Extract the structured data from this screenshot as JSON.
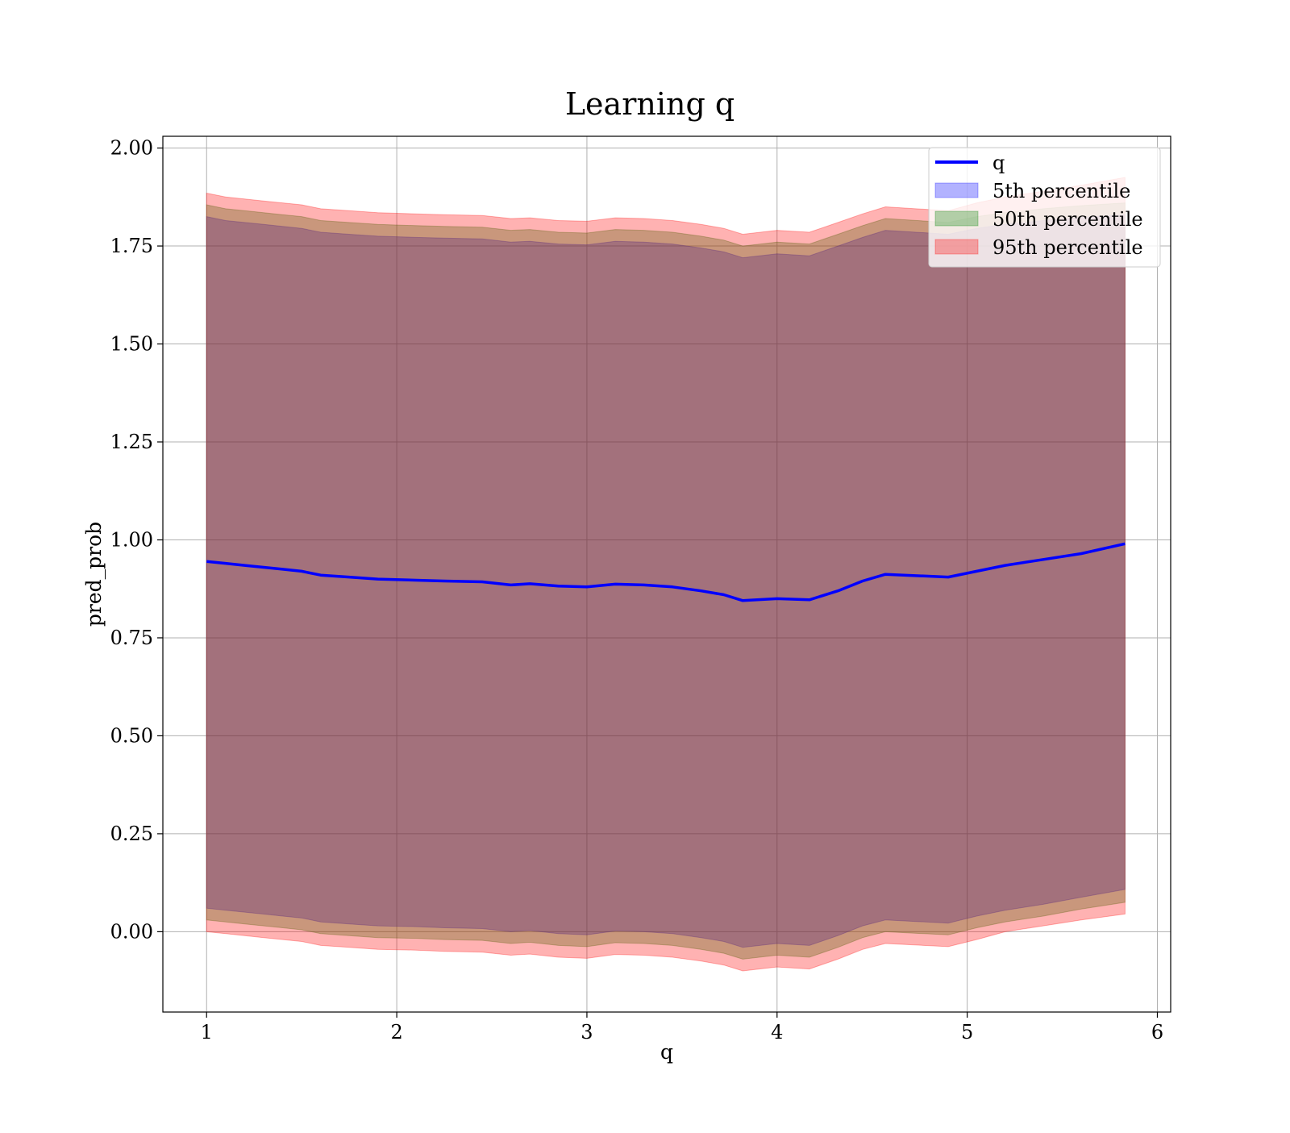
{
  "chart_data": {
    "type": "area",
    "title": "Learning q",
    "xlabel": "q",
    "ylabel": "pred_prob",
    "xlim": [
      0.77,
      6.07
    ],
    "ylim": [
      -0.205,
      2.03
    ],
    "x_ticks": [
      1,
      2,
      3,
      4,
      5,
      6
    ],
    "x_tick_labels": [
      "1",
      "2",
      "3",
      "4",
      "5",
      "6"
    ],
    "y_ticks": [
      0.0,
      0.25,
      0.5,
      0.75,
      1.0,
      1.25,
      1.5,
      1.75,
      2.0
    ],
    "y_tick_labels": [
      "0.00",
      "0.25",
      "0.50",
      "0.75",
      "1.00",
      "1.25",
      "1.50",
      "1.75",
      "2.00"
    ],
    "grid": true,
    "legend_position": "top-right",
    "x": [
      1.0,
      1.1,
      1.2,
      1.3,
      1.4,
      1.5,
      1.6,
      1.75,
      1.9,
      2.1,
      2.25,
      2.45,
      2.6,
      2.7,
      2.85,
      3.0,
      3.15,
      3.3,
      3.45,
      3.6,
      3.72,
      3.82,
      4.0,
      4.17,
      4.32,
      4.45,
      4.57,
      4.9,
      5.05,
      5.2,
      5.4,
      5.6,
      5.83
    ],
    "line": {
      "name": "q",
      "color": "#0000ff",
      "values": [
        0.945,
        0.94,
        0.935,
        0.93,
        0.925,
        0.92,
        0.91,
        0.905,
        0.9,
        0.897,
        0.895,
        0.893,
        0.885,
        0.888,
        0.882,
        0.88,
        0.887,
        0.885,
        0.88,
        0.87,
        0.86,
        0.845,
        0.85,
        0.847,
        0.87,
        0.895,
        0.912,
        0.905,
        0.92,
        0.935,
        0.95,
        0.965,
        0.99
      ]
    },
    "bands": [
      {
        "name": "5th percentile",
        "color": "#0000ff",
        "upper": [
          1.825,
          1.815,
          1.81,
          1.805,
          1.8,
          1.795,
          1.785,
          1.78,
          1.775,
          1.772,
          1.77,
          1.768,
          1.76,
          1.762,
          1.755,
          1.753,
          1.762,
          1.76,
          1.755,
          1.745,
          1.735,
          1.72,
          1.73,
          1.725,
          1.75,
          1.772,
          1.79,
          1.78,
          1.795,
          1.805,
          1.815,
          1.823,
          1.83
        ],
        "lower": [
          0.06,
          0.055,
          0.05,
          0.045,
          0.04,
          0.035,
          0.025,
          0.02,
          0.015,
          0.013,
          0.01,
          0.008,
          0.0,
          0.003,
          -0.005,
          -0.008,
          0.002,
          0.0,
          -0.005,
          -0.015,
          -0.025,
          -0.04,
          -0.03,
          -0.035,
          -0.01,
          0.015,
          0.03,
          0.022,
          0.04,
          0.055,
          0.07,
          0.088,
          0.108
        ]
      },
      {
        "name": "50th percentile",
        "color": "#008000",
        "upper": [
          1.855,
          1.845,
          1.84,
          1.835,
          1.83,
          1.825,
          1.815,
          1.81,
          1.805,
          1.802,
          1.8,
          1.798,
          1.79,
          1.792,
          1.785,
          1.783,
          1.792,
          1.79,
          1.785,
          1.775,
          1.765,
          1.75,
          1.76,
          1.755,
          1.78,
          1.802,
          1.82,
          1.81,
          1.825,
          1.835,
          1.845,
          1.853,
          1.86
        ],
        "lower": [
          0.03,
          0.025,
          0.02,
          0.015,
          0.01,
          0.005,
          -0.005,
          -0.01,
          -0.015,
          -0.017,
          -0.02,
          -0.022,
          -0.03,
          -0.027,
          -0.035,
          -0.038,
          -0.028,
          -0.03,
          -0.035,
          -0.045,
          -0.055,
          -0.07,
          -0.06,
          -0.065,
          -0.04,
          -0.015,
          0.0,
          -0.008,
          0.01,
          0.025,
          0.04,
          0.058,
          0.075
        ]
      },
      {
        "name": "95th percentile",
        "color": "#ff0000",
        "upper": [
          1.885,
          1.875,
          1.87,
          1.865,
          1.86,
          1.855,
          1.845,
          1.84,
          1.835,
          1.832,
          1.83,
          1.828,
          1.82,
          1.822,
          1.815,
          1.813,
          1.822,
          1.82,
          1.815,
          1.805,
          1.795,
          1.78,
          1.79,
          1.785,
          1.81,
          1.832,
          1.85,
          1.84,
          1.86,
          1.875,
          1.89,
          1.905,
          1.925
        ],
        "lower": [
          0.0,
          -0.005,
          -0.01,
          -0.015,
          -0.02,
          -0.025,
          -0.035,
          -0.04,
          -0.045,
          -0.047,
          -0.05,
          -0.052,
          -0.06,
          -0.057,
          -0.065,
          -0.068,
          -0.058,
          -0.06,
          -0.065,
          -0.075,
          -0.085,
          -0.1,
          -0.09,
          -0.095,
          -0.07,
          -0.045,
          -0.03,
          -0.038,
          -0.02,
          0.0,
          0.015,
          0.03,
          0.045
        ]
      }
    ]
  }
}
